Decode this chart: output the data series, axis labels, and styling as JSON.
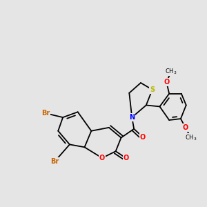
{
  "background_color": "#e5e5e5",
  "bond_color": "#000000",
  "atom_colors": {
    "Br": "#c86400",
    "O": "#ff0000",
    "N": "#0000ff",
    "S": "#b8b800",
    "C": "#000000"
  },
  "figsize": [
    3.0,
    3.0
  ],
  "dpi": 100,
  "bond_lw": 1.3,
  "font_size": 7.0
}
